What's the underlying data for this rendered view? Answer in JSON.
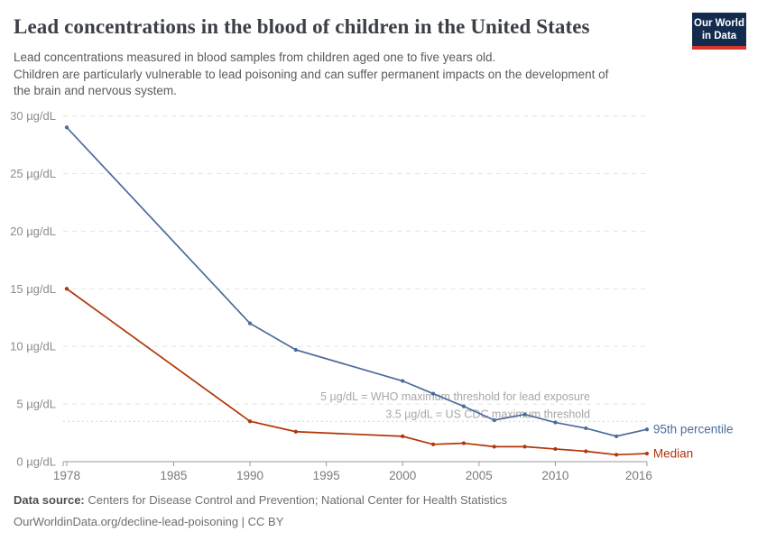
{
  "header": {
    "title": "Lead concentrations in the blood of children in the United States",
    "subtitle_lines": [
      "Lead concentrations measured in blood samples from children aged one to five years old.",
      "Children are particularly vulnerable to lead poisoning and can suffer permanent impacts on the development of",
      "the brain and nervous system."
    ],
    "logo": {
      "line1": "Our World",
      "line2": "in Data",
      "bg_color": "#132c4e",
      "stripe_color": "#d9362b"
    }
  },
  "chart_data": {
    "type": "line",
    "unit": "µg/dL",
    "x": [
      1978,
      1990,
      1993,
      2000,
      2002,
      2004,
      2006,
      2008,
      2010,
      2012,
      2014,
      2016
    ],
    "series": [
      {
        "name": "95th percentile",
        "color": "#4C6A9C",
        "values": [
          29.0,
          12.0,
          9.7,
          7.0,
          5.9,
          4.8,
          3.6,
          4.1,
          3.4,
          2.9,
          2.2,
          2.8
        ]
      },
      {
        "name": "Median",
        "color": "#B13507",
        "values": [
          15.0,
          3.5,
          2.6,
          2.2,
          1.5,
          1.6,
          1.3,
          1.3,
          1.1,
          0.9,
          0.6,
          0.7
        ]
      }
    ],
    "ylim": [
      0,
      30
    ],
    "xlim": [
      1977.6,
      2016
    ],
    "y_ticks": [
      0,
      5,
      10,
      15,
      20,
      25,
      30
    ],
    "y_tick_format": "{v} µg/dL",
    "x_ticks": [
      1978,
      1985,
      1990,
      1995,
      2000,
      2005,
      2010,
      2016
    ],
    "grid": true,
    "legend_position": "end-of-line",
    "annotations": [
      {
        "value": 5,
        "label": "5 µg/dL = WHO maximum threshold for lead exposure",
        "style": "dashed"
      },
      {
        "value": 3.5,
        "label": "3.5 µg/dL = US CDC maximum threshold",
        "style": "dotted"
      }
    ]
  },
  "footer": {
    "source_label": "Data source:",
    "source_text": "Centers for Disease Control and Prevention; National Center for Health Statistics",
    "url_line": "OurWorldinData.org/decline-lead-poisoning | CC BY"
  }
}
